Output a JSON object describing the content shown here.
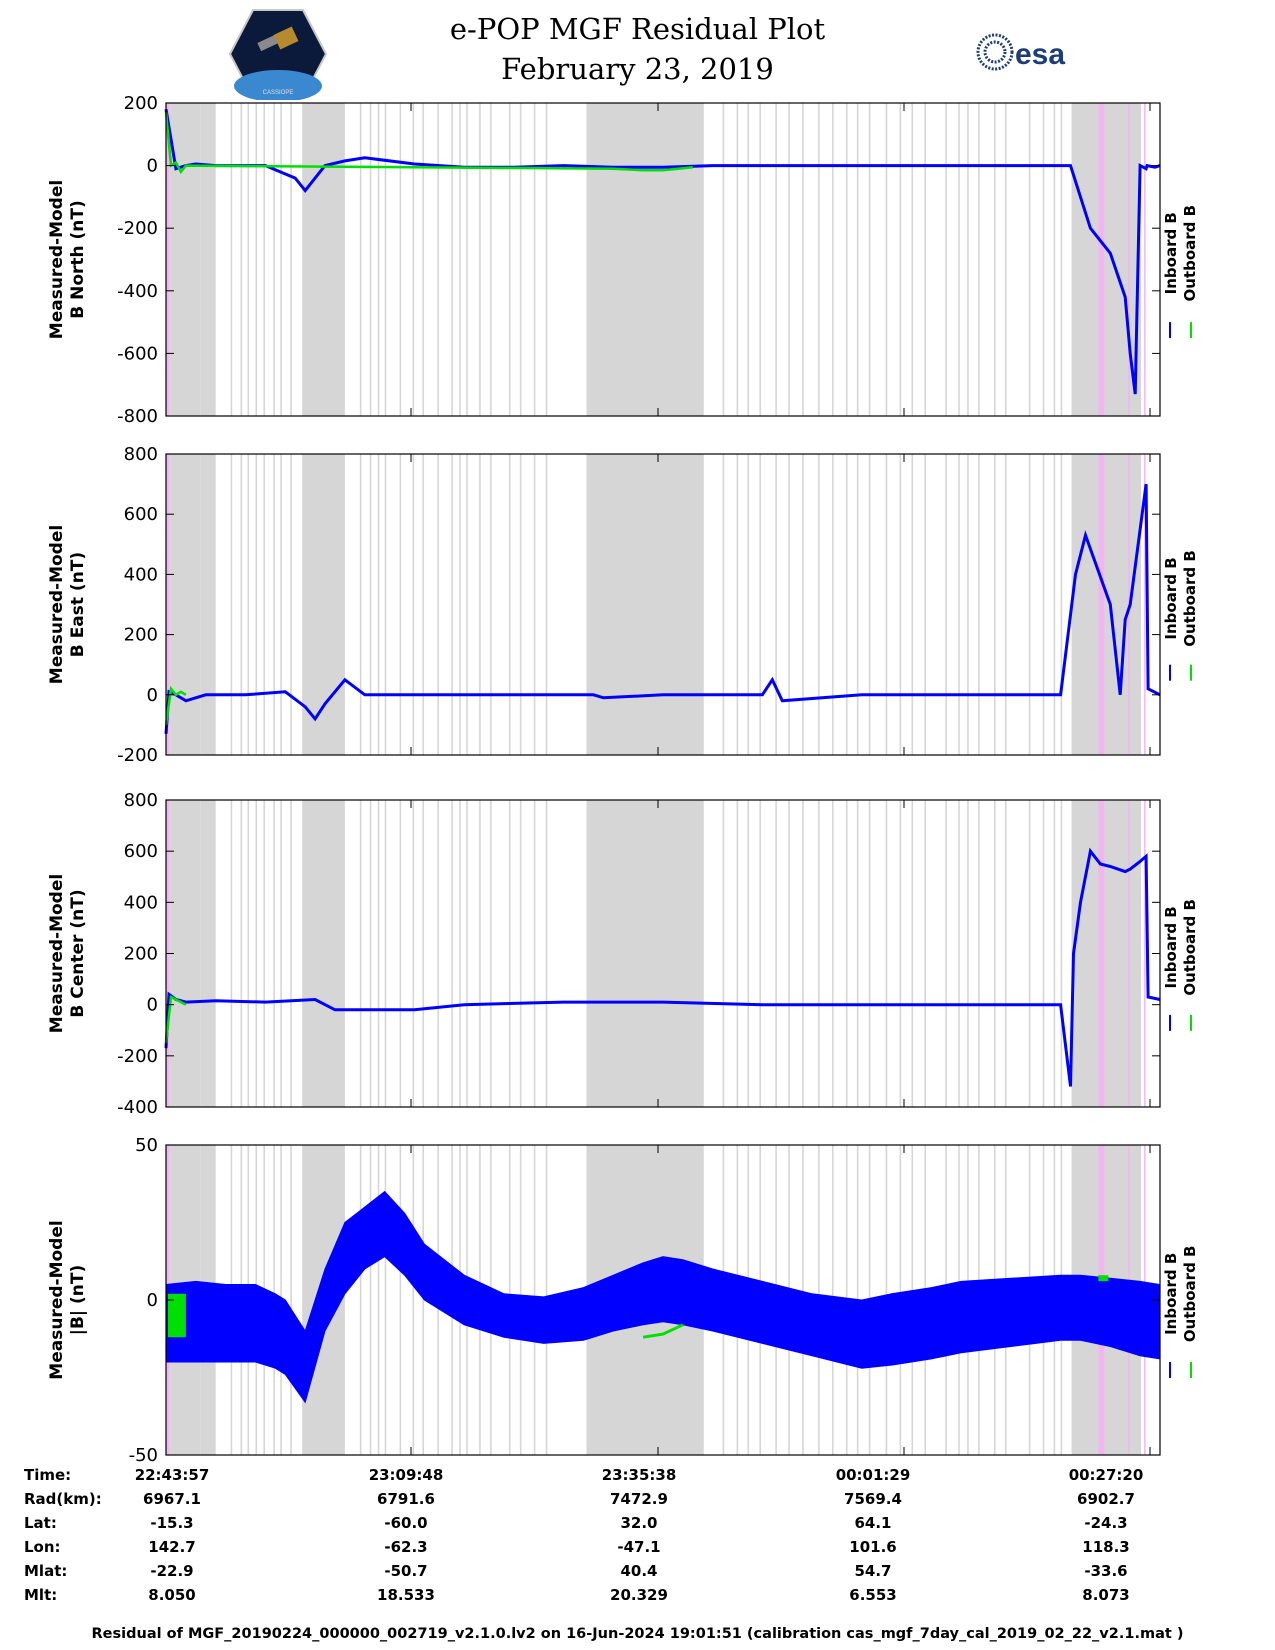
{
  "title": "e-POP MGF Residual Plot",
  "date": "February 23, 2019",
  "logos": {
    "left": "cassiope-mission-logo",
    "right": "esa-logo",
    "right_text": "esa"
  },
  "colors": {
    "inboard": "#0000ff",
    "outboard": "#00e000",
    "gray_band": "#d6d6d6",
    "pink_band": "#f2b5f2"
  },
  "legend": {
    "inboard": "Inboard B",
    "outboard": "Outboard B"
  },
  "chart_data": [
    {
      "type": "line",
      "ylabel": [
        "Measured-Model",
        "B North (nT)"
      ],
      "ylim": [
        -800,
        200
      ],
      "yticks": [
        200,
        0,
        -200,
        -400,
        -600,
        -800
      ],
      "xlim": [
        0,
        100
      ],
      "series": [
        {
          "name": "Inboard B",
          "x": [
            0,
            1,
            2,
            3,
            5,
            10,
            13,
            14,
            16,
            18,
            20,
            25,
            30,
            35,
            40,
            45,
            50,
            55,
            60,
            65,
            70,
            75,
            80,
            85,
            91,
            93,
            95,
            96.5,
            97,
            97.5,
            98,
            98.6,
            98.7,
            99.5,
            100
          ],
          "y": [
            180,
            -10,
            0,
            5,
            0,
            0,
            -40,
            -80,
            0,
            15,
            25,
            5,
            -5,
            -5,
            0,
            -5,
            -5,
            0,
            0,
            0,
            0,
            0,
            0,
            0,
            0,
            -200,
            -280,
            -420,
            -600,
            -730,
            0,
            -10,
            0,
            -5,
            0
          ]
        },
        {
          "name": "Outboard B",
          "x": [
            0,
            0.5,
            1,
            1.5,
            2,
            45,
            48,
            50,
            53
          ],
          "y": [
            170,
            0,
            10,
            -20,
            0,
            -10,
            -15,
            -15,
            -5
          ]
        }
      ]
    },
    {
      "type": "line",
      "ylabel": [
        "Measured-Model",
        "B East (nT)"
      ],
      "ylim": [
        -200,
        800
      ],
      "yticks": [
        800,
        600,
        400,
        200,
        0,
        -200
      ],
      "xlim": [
        0,
        100
      ],
      "series": [
        {
          "name": "Inboard B",
          "x": [
            0,
            0.3,
            1,
            2,
            4,
            8,
            12,
            14,
            15,
            16,
            18,
            20,
            30,
            43,
            44,
            50,
            60,
            61,
            62,
            70,
            90,
            91.5,
            92.5,
            95,
            96,
            96.5,
            97,
            98.6,
            98.8,
            100
          ],
          "y": [
            -130,
            10,
            0,
            -20,
            0,
            0,
            10,
            -40,
            -80,
            -30,
            50,
            0,
            0,
            0,
            -10,
            0,
            0,
            50,
            -20,
            0,
            0,
            400,
            530,
            300,
            0,
            250,
            300,
            700,
            20,
            0
          ]
        },
        {
          "name": "Outboard B",
          "x": [
            0,
            0.5,
            1,
            1.5,
            2
          ],
          "y": [
            -100,
            20,
            0,
            10,
            0
          ]
        }
      ]
    },
    {
      "type": "line",
      "ylabel": [
        "Measured-Model",
        "B Center (nT)"
      ],
      "ylim": [
        -400,
        800
      ],
      "yticks": [
        800,
        600,
        400,
        200,
        0,
        -200,
        -400
      ],
      "xlim": [
        0,
        100
      ],
      "series": [
        {
          "name": "Inboard B",
          "x": [
            0,
            0.3,
            1,
            2,
            5,
            10,
            15,
            17,
            20,
            25,
            30,
            40,
            50,
            60,
            70,
            80,
            90,
            91,
            91.3,
            92,
            93,
            94,
            95,
            96.5,
            97,
            98,
            98.6,
            98.8,
            100
          ],
          "y": [
            -170,
            40,
            20,
            10,
            15,
            10,
            20,
            -20,
            -20,
            -20,
            0,
            10,
            10,
            0,
            0,
            0,
            0,
            -320,
            200,
            400,
            600,
            550,
            540,
            520,
            530,
            560,
            580,
            30,
            20
          ]
        },
        {
          "name": "Outboard B",
          "x": [
            0,
            0.5,
            1,
            1.5,
            2
          ],
          "y": [
            -150,
            30,
            20,
            10,
            0
          ]
        }
      ]
    },
    {
      "type": "line",
      "ylabel": [
        "Measured-Model",
        "|B| (nT)"
      ],
      "ylim": [
        -50,
        50
      ],
      "yticks": [
        50,
        0,
        -50
      ],
      "xlim": [
        0,
        100
      ],
      "series": [
        {
          "name": "Inboard B (upper envelope)",
          "x": [
            0,
            3,
            6,
            9,
            11,
            12,
            14,
            16,
            18,
            20,
            22,
            24,
            26,
            30,
            34,
            38,
            42,
            45,
            48,
            50,
            52,
            55,
            60,
            65,
            70,
            73,
            77,
            80,
            85,
            90,
            92,
            95,
            98,
            100
          ],
          "y": [
            5,
            6,
            5,
            5,
            2,
            0,
            -10,
            10,
            25,
            30,
            35,
            28,
            18,
            8,
            2,
            1,
            4,
            8,
            12,
            14,
            13,
            10,
            6,
            2,
            0,
            2,
            4,
            6,
            7,
            8,
            8,
            7,
            6,
            5
          ]
        },
        {
          "name": "Inboard B (lower envelope)",
          "x": [
            0,
            3,
            6,
            9,
            11,
            12,
            14,
            16,
            18,
            20,
            22,
            24,
            26,
            30,
            34,
            38,
            42,
            45,
            48,
            50,
            52,
            55,
            60,
            65,
            70,
            73,
            77,
            80,
            85,
            90,
            92,
            95,
            98,
            100
          ],
          "y": [
            -20,
            -20,
            -20,
            -20,
            -22,
            -24,
            -33,
            -10,
            2,
            10,
            14,
            8,
            0,
            -8,
            -12,
            -14,
            -13,
            -10,
            -8,
            -7,
            -8,
            -10,
            -14,
            -18,
            -22,
            -21,
            -19,
            -17,
            -15,
            -13,
            -13,
            -15,
            -18,
            -19
          ]
        },
        {
          "name": "Outboard B",
          "x": [
            0,
            0.5,
            1,
            1.5,
            2,
            48,
            50,
            52,
            94,
            95
          ],
          "y": [
            0,
            -12,
            2,
            -12,
            0,
            -12,
            -11,
            -8,
            6,
            7
          ]
        }
      ]
    }
  ],
  "gray_bands": [
    [
      0,
      3.5
    ],
    [
      3.5,
      5
    ],
    [
      13.7,
      18
    ],
    [
      42.3,
      54.1
    ],
    [
      91.1,
      98.1
    ]
  ],
  "gray_lines": [
    6.5,
    7.5,
    8.2,
    9,
    9.8,
    10.8,
    11.5,
    12.5,
    19.5,
    20.5,
    21.3,
    22,
    23.5,
    24.8,
    25.8,
    27.3,
    28.7,
    29.5,
    30.2,
    31.5,
    32.6,
    34.5,
    35.6,
    37,
    38.2,
    56,
    57.4,
    58.5,
    59.7,
    61.3,
    62.6,
    64,
    65.6,
    67,
    68.4,
    69.5,
    70.7,
    72.4,
    73.8,
    75,
    76.3,
    78.4,
    79.7,
    80.6,
    81.7,
    83.3,
    84.4,
    86.8,
    88.2,
    89.3,
    90
  ],
  "pink_bands": [
    [
      0,
      0.3
    ],
    [
      93.8,
      94.4
    ]
  ],
  "pink_lines": [
    96.8,
    98.4
  ],
  "bottom": {
    "row_labels": [
      "Time:",
      "Rad(km):",
      "Lat:",
      "Lon:",
      "Mlat:",
      "Mlt:"
    ],
    "columns": [
      {
        "Time": "22:43:57",
        "Rad": "6967.1",
        "Lat": "-15.3",
        "Lon": "142.7",
        "Mlat": "-22.9",
        "Mlt": "8.050"
      },
      {
        "Time": "23:09:48",
        "Rad": "6791.6",
        "Lat": "-60.0",
        "Lon": "-62.3",
        "Mlat": "-50.7",
        "Mlt": "18.533"
      },
      {
        "Time": "23:35:38",
        "Rad": "7472.9",
        "Lat": "32.0",
        "Lon": "-47.1",
        "Mlat": "40.4",
        "Mlt": "20.329"
      },
      {
        "Time": "00:01:29",
        "Rad": "7569.4",
        "Lat": "64.1",
        "Lon": "101.6",
        "Mlat": "54.7",
        "Mlt": "6.553"
      },
      {
        "Time": "00:27:20",
        "Rad": "6902.7",
        "Lat": "-24.3",
        "Lon": "118.3",
        "Mlat": "-33.6",
        "Mlt": "8.073"
      }
    ]
  },
  "footer": "Residual of MGF_20190224_000000_002719_v2.1.0.lv2 on 16-Jun-2024 19:01:51 (calibration cas_mgf_7day_cal_2019_02_22_v2.1.mat )"
}
